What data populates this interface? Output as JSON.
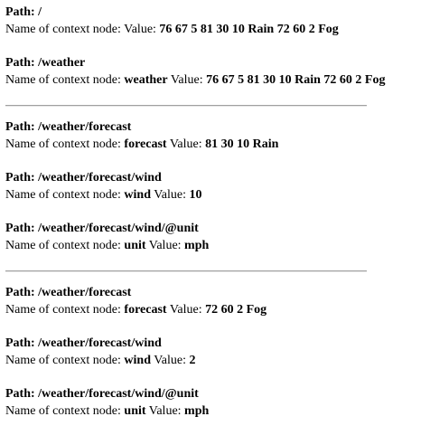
{
  "labels": {
    "path_prefix": "Path: ",
    "name_prefix": "Name of context node: ",
    "value_prefix": "Value: "
  },
  "groups": [
    {
      "entries": [
        {
          "path": "/",
          "name": "",
          "value": "76 67 5 81 30 10 Rain 72 60 2 Fog"
        },
        {
          "path": "/weather",
          "name": "weather",
          "value": "76 67 5 81 30 10 Rain 72 60 2 Fog"
        }
      ]
    },
    {
      "entries": [
        {
          "path": "/weather/forecast",
          "name": "forecast",
          "value": "81 30 10 Rain"
        },
        {
          "path": "/weather/forecast/wind",
          "name": "wind",
          "value": "10"
        },
        {
          "path": "/weather/forecast/wind/@unit",
          "name": "unit",
          "value": "mph"
        }
      ]
    },
    {
      "entries": [
        {
          "path": "/weather/forecast",
          "name": "forecast",
          "value": "72 60 2 Fog"
        },
        {
          "path": "/weather/forecast/wind",
          "name": "wind",
          "value": "2"
        },
        {
          "path": "/weather/forecast/wind/@unit",
          "name": "unit",
          "value": "mph"
        }
      ]
    }
  ]
}
